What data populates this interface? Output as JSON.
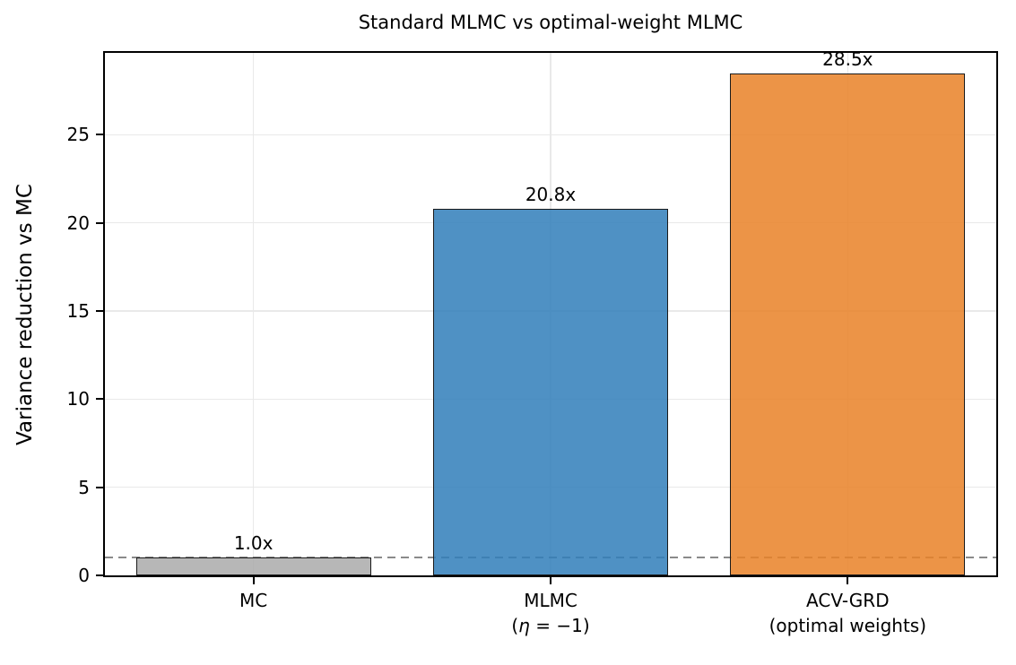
{
  "chart_data": {
    "type": "bar",
    "title": "Standard MLMC vs optimal-weight MLMC",
    "xlabel": "",
    "ylabel": "Variance reduction vs MC",
    "categories": [
      "MC",
      "MLMC\n(η = −1)",
      "ACV-GRD\n(optimal weights)"
    ],
    "bars": [
      {
        "label": "MC",
        "sublabel": "",
        "value": 1.0,
        "value_label": "1.0x",
        "fill": "#aaaaaa"
      },
      {
        "label": "MLMC",
        "sublabel": "(η = −1)",
        "value": 20.8,
        "value_label": "20.8x",
        "fill": "#307eba"
      },
      {
        "label": "ACV-GRD",
        "sublabel": "(optimal weights)",
        "value": 28.5,
        "value_label": "28.5x",
        "fill": "#e98127"
      }
    ],
    "yticks": [
      0,
      5,
      10,
      15,
      20,
      25
    ],
    "ylim": [
      0,
      29.65
    ],
    "grid": true,
    "legend_position": "none",
    "reference_line": {
      "y": 1.0,
      "style": "dashed",
      "color": "#8a8a8a"
    }
  },
  "style": {
    "background": "#ffffff",
    "bar_alpha": 0.85,
    "bar_edge_color": "#1a1a1a",
    "grid_color": "#e9e9e9",
    "spine_color": "#000000",
    "text_color": "#000000"
  }
}
